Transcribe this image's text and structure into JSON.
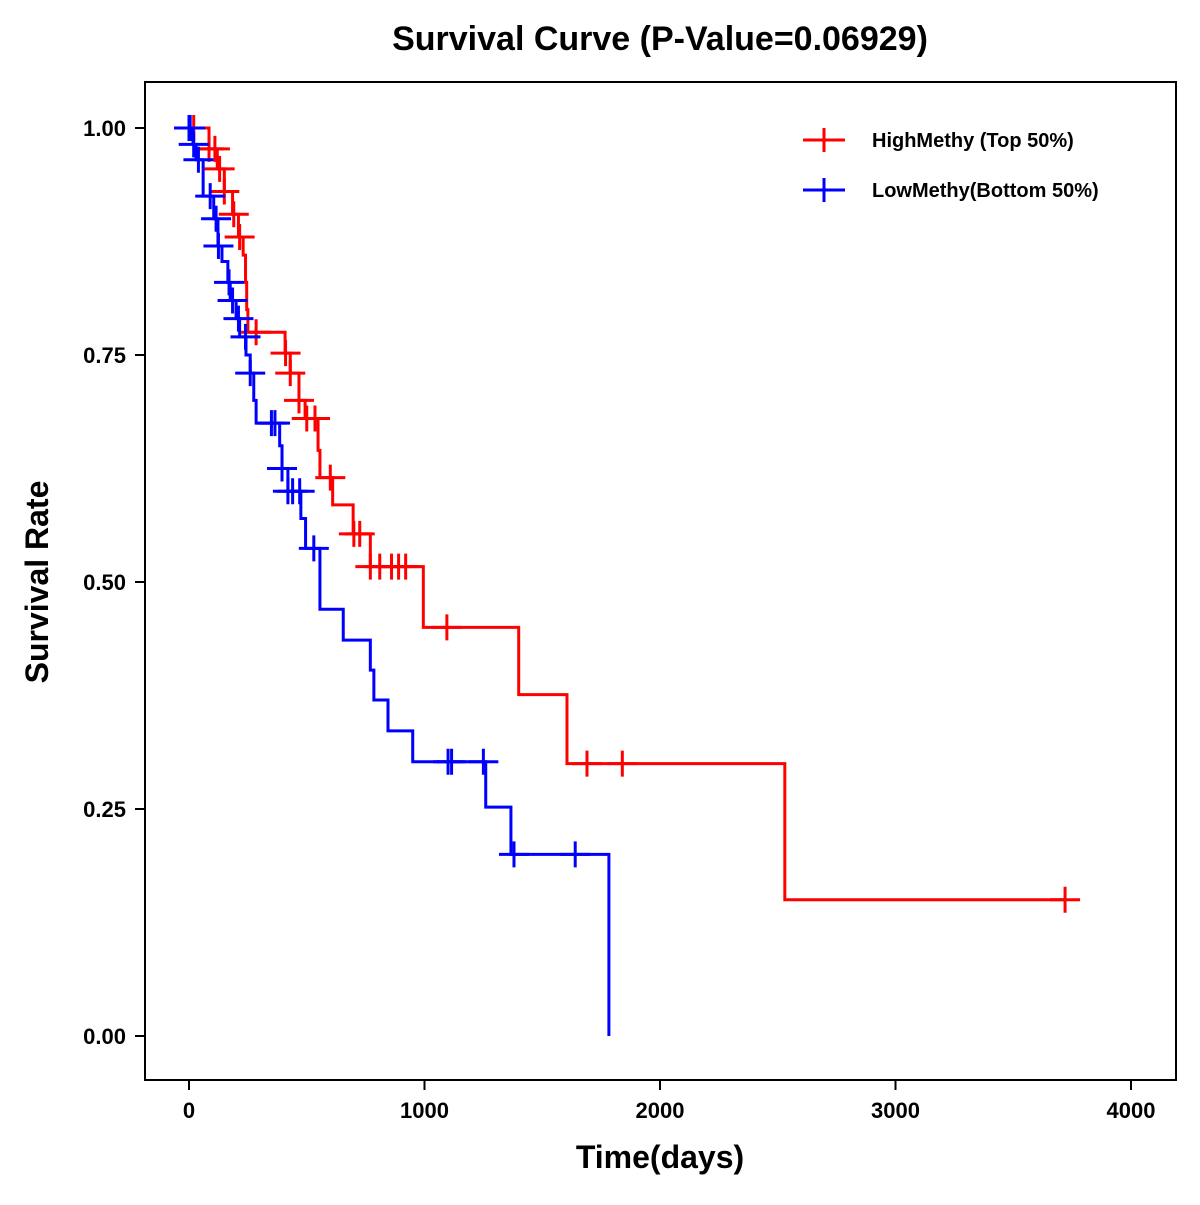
{
  "chart_data": {
    "type": "line",
    "title": "Survival Curve (P-Value=0.06929)",
    "xlabel": "Time(days)",
    "ylabel": "Survival Rate",
    "xlim": [
      -200,
      4150
    ],
    "ylim": [
      -0.05,
      1.05
    ],
    "xticks": [
      0,
      1000,
      2000,
      3000,
      4000
    ],
    "xtick_labels": [
      "0",
      "1000",
      "2000",
      "3000",
      "4000"
    ],
    "yticks": [
      0,
      0.25,
      0.5,
      0.75,
      1.0
    ],
    "ytick_labels": [
      "0.00",
      "0.25",
      "0.50",
      "0.75",
      "1.00"
    ],
    "grid": false,
    "legend_position": "top-right",
    "series": [
      {
        "name": "HighMethy (Top 50%)",
        "color": "#ff0000",
        "steps": [
          [
            0,
            1.0
          ],
          [
            85,
            0.977
          ],
          [
            120,
            0.955
          ],
          [
            150,
            0.93
          ],
          [
            185,
            0.905
          ],
          [
            210,
            0.88
          ],
          [
            230,
            0.86
          ],
          [
            240,
            0.83
          ],
          [
            245,
            0.8
          ],
          [
            250,
            0.775
          ],
          [
            408,
            0.752
          ],
          [
            430,
            0.73
          ],
          [
            467,
            0.7
          ],
          [
            493,
            0.68
          ],
          [
            548,
            0.645
          ],
          [
            556,
            0.615
          ],
          [
            610,
            0.585
          ],
          [
            697,
            0.553
          ],
          [
            770,
            0.517
          ],
          [
            995,
            0.45
          ],
          [
            1400,
            0.376
          ],
          [
            1605,
            0.3
          ],
          [
            2530,
            0.15
          ]
        ],
        "end": 3720,
        "censored": [
          20,
          85,
          110,
          130,
          150,
          190,
          215,
          285,
          410,
          430,
          467,
          500,
          535,
          600,
          700,
          725,
          770,
          810,
          860,
          890,
          920,
          1095,
          1690,
          1840,
          3720
        ]
      },
      {
        "name": "LowMethy(Bottom 50%)",
        "color": "#0000ff",
        "steps": [
          [
            0,
            1.0
          ],
          [
            17,
            0.982
          ],
          [
            30,
            0.965
          ],
          [
            60,
            0.925
          ],
          [
            105,
            0.9
          ],
          [
            123,
            0.87
          ],
          [
            140,
            0.853
          ],
          [
            165,
            0.83
          ],
          [
            175,
            0.81
          ],
          [
            200,
            0.79
          ],
          [
            215,
            0.77
          ],
          [
            242,
            0.75
          ],
          [
            260,
            0.73
          ],
          [
            275,
            0.7
          ],
          [
            285,
            0.675
          ],
          [
            385,
            0.65
          ],
          [
            395,
            0.625
          ],
          [
            420,
            0.6
          ],
          [
            475,
            0.57
          ],
          [
            495,
            0.537
          ],
          [
            556,
            0.47
          ],
          [
            655,
            0.436
          ],
          [
            770,
            0.403
          ],
          [
            785,
            0.37
          ],
          [
            845,
            0.336
          ],
          [
            950,
            0.302
          ],
          [
            1260,
            0.252
          ],
          [
            1367,
            0.2
          ],
          [
            1783,
            0.0
          ]
        ],
        "end": 1783,
        "censored": [
          0,
          5,
          20,
          40,
          90,
          115,
          125,
          170,
          185,
          210,
          240,
          260,
          350,
          365,
          395,
          420,
          440,
          470,
          530,
          1100,
          1115,
          1250,
          1380,
          1640
        ]
      }
    ]
  }
}
